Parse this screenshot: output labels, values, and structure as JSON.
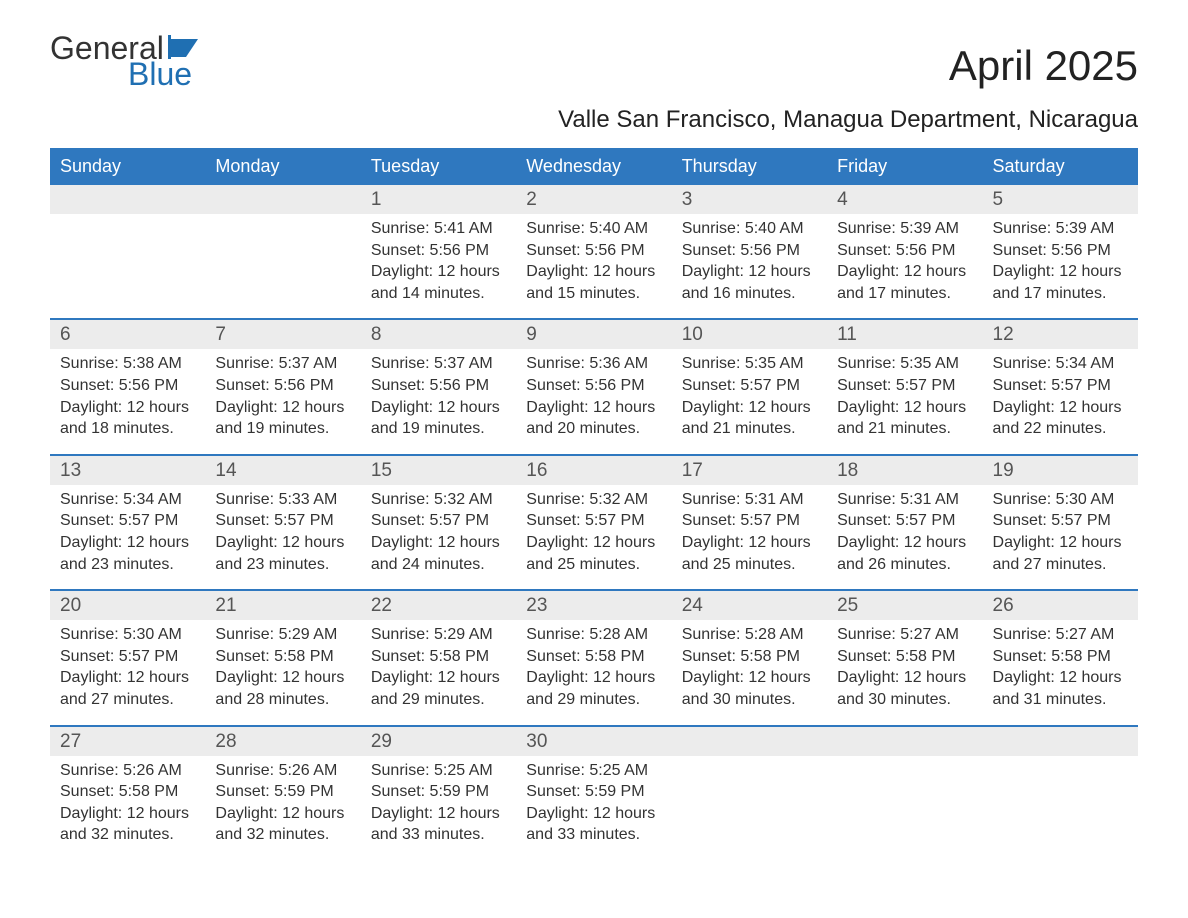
{
  "logo": {
    "line1": "General",
    "line2": "Blue",
    "icon_color": "#1f6fb2"
  },
  "title": "April 2025",
  "subtitle": "Valle San Francisco, Managua Department, Nicaragua",
  "colors": {
    "header_bg": "#2f78bf",
    "header_text": "#ffffff",
    "daynum_bg": "#ececec",
    "body_text": "#333333",
    "accent_rule": "#2f78bf"
  },
  "typography": {
    "title_fontsize": 42,
    "subtitle_fontsize": 24,
    "header_fontsize": 18,
    "daynum_fontsize": 19,
    "cell_fontsize": 16
  },
  "calendar": {
    "columns": [
      "Sunday",
      "Monday",
      "Tuesday",
      "Wednesday",
      "Thursday",
      "Friday",
      "Saturday"
    ],
    "weeks": [
      [
        {
          "day": "",
          "sunrise": "",
          "sunset": "",
          "daylight1": "",
          "daylight2": ""
        },
        {
          "day": "",
          "sunrise": "",
          "sunset": "",
          "daylight1": "",
          "daylight2": ""
        },
        {
          "day": "1",
          "sunrise": "Sunrise: 5:41 AM",
          "sunset": "Sunset: 5:56 PM",
          "daylight1": "Daylight: 12 hours",
          "daylight2": "and 14 minutes."
        },
        {
          "day": "2",
          "sunrise": "Sunrise: 5:40 AM",
          "sunset": "Sunset: 5:56 PM",
          "daylight1": "Daylight: 12 hours",
          "daylight2": "and 15 minutes."
        },
        {
          "day": "3",
          "sunrise": "Sunrise: 5:40 AM",
          "sunset": "Sunset: 5:56 PM",
          "daylight1": "Daylight: 12 hours",
          "daylight2": "and 16 minutes."
        },
        {
          "day": "4",
          "sunrise": "Sunrise: 5:39 AM",
          "sunset": "Sunset: 5:56 PM",
          "daylight1": "Daylight: 12 hours",
          "daylight2": "and 17 minutes."
        },
        {
          "day": "5",
          "sunrise": "Sunrise: 5:39 AM",
          "sunset": "Sunset: 5:56 PM",
          "daylight1": "Daylight: 12 hours",
          "daylight2": "and 17 minutes."
        }
      ],
      [
        {
          "day": "6",
          "sunrise": "Sunrise: 5:38 AM",
          "sunset": "Sunset: 5:56 PM",
          "daylight1": "Daylight: 12 hours",
          "daylight2": "and 18 minutes."
        },
        {
          "day": "7",
          "sunrise": "Sunrise: 5:37 AM",
          "sunset": "Sunset: 5:56 PM",
          "daylight1": "Daylight: 12 hours",
          "daylight2": "and 19 minutes."
        },
        {
          "day": "8",
          "sunrise": "Sunrise: 5:37 AM",
          "sunset": "Sunset: 5:56 PM",
          "daylight1": "Daylight: 12 hours",
          "daylight2": "and 19 minutes."
        },
        {
          "day": "9",
          "sunrise": "Sunrise: 5:36 AM",
          "sunset": "Sunset: 5:56 PM",
          "daylight1": "Daylight: 12 hours",
          "daylight2": "and 20 minutes."
        },
        {
          "day": "10",
          "sunrise": "Sunrise: 5:35 AM",
          "sunset": "Sunset: 5:57 PM",
          "daylight1": "Daylight: 12 hours",
          "daylight2": "and 21 minutes."
        },
        {
          "day": "11",
          "sunrise": "Sunrise: 5:35 AM",
          "sunset": "Sunset: 5:57 PM",
          "daylight1": "Daylight: 12 hours",
          "daylight2": "and 21 minutes."
        },
        {
          "day": "12",
          "sunrise": "Sunrise: 5:34 AM",
          "sunset": "Sunset: 5:57 PM",
          "daylight1": "Daylight: 12 hours",
          "daylight2": "and 22 minutes."
        }
      ],
      [
        {
          "day": "13",
          "sunrise": "Sunrise: 5:34 AM",
          "sunset": "Sunset: 5:57 PM",
          "daylight1": "Daylight: 12 hours",
          "daylight2": "and 23 minutes."
        },
        {
          "day": "14",
          "sunrise": "Sunrise: 5:33 AM",
          "sunset": "Sunset: 5:57 PM",
          "daylight1": "Daylight: 12 hours",
          "daylight2": "and 23 minutes."
        },
        {
          "day": "15",
          "sunrise": "Sunrise: 5:32 AM",
          "sunset": "Sunset: 5:57 PM",
          "daylight1": "Daylight: 12 hours",
          "daylight2": "and 24 minutes."
        },
        {
          "day": "16",
          "sunrise": "Sunrise: 5:32 AM",
          "sunset": "Sunset: 5:57 PM",
          "daylight1": "Daylight: 12 hours",
          "daylight2": "and 25 minutes."
        },
        {
          "day": "17",
          "sunrise": "Sunrise: 5:31 AM",
          "sunset": "Sunset: 5:57 PM",
          "daylight1": "Daylight: 12 hours",
          "daylight2": "and 25 minutes."
        },
        {
          "day": "18",
          "sunrise": "Sunrise: 5:31 AM",
          "sunset": "Sunset: 5:57 PM",
          "daylight1": "Daylight: 12 hours",
          "daylight2": "and 26 minutes."
        },
        {
          "day": "19",
          "sunrise": "Sunrise: 5:30 AM",
          "sunset": "Sunset: 5:57 PM",
          "daylight1": "Daylight: 12 hours",
          "daylight2": "and 27 minutes."
        }
      ],
      [
        {
          "day": "20",
          "sunrise": "Sunrise: 5:30 AM",
          "sunset": "Sunset: 5:57 PM",
          "daylight1": "Daylight: 12 hours",
          "daylight2": "and 27 minutes."
        },
        {
          "day": "21",
          "sunrise": "Sunrise: 5:29 AM",
          "sunset": "Sunset: 5:58 PM",
          "daylight1": "Daylight: 12 hours",
          "daylight2": "and 28 minutes."
        },
        {
          "day": "22",
          "sunrise": "Sunrise: 5:29 AM",
          "sunset": "Sunset: 5:58 PM",
          "daylight1": "Daylight: 12 hours",
          "daylight2": "and 29 minutes."
        },
        {
          "day": "23",
          "sunrise": "Sunrise: 5:28 AM",
          "sunset": "Sunset: 5:58 PM",
          "daylight1": "Daylight: 12 hours",
          "daylight2": "and 29 minutes."
        },
        {
          "day": "24",
          "sunrise": "Sunrise: 5:28 AM",
          "sunset": "Sunset: 5:58 PM",
          "daylight1": "Daylight: 12 hours",
          "daylight2": "and 30 minutes."
        },
        {
          "day": "25",
          "sunrise": "Sunrise: 5:27 AM",
          "sunset": "Sunset: 5:58 PM",
          "daylight1": "Daylight: 12 hours",
          "daylight2": "and 30 minutes."
        },
        {
          "day": "26",
          "sunrise": "Sunrise: 5:27 AM",
          "sunset": "Sunset: 5:58 PM",
          "daylight1": "Daylight: 12 hours",
          "daylight2": "and 31 minutes."
        }
      ],
      [
        {
          "day": "27",
          "sunrise": "Sunrise: 5:26 AM",
          "sunset": "Sunset: 5:58 PM",
          "daylight1": "Daylight: 12 hours",
          "daylight2": "and 32 minutes."
        },
        {
          "day": "28",
          "sunrise": "Sunrise: 5:26 AM",
          "sunset": "Sunset: 5:59 PM",
          "daylight1": "Daylight: 12 hours",
          "daylight2": "and 32 minutes."
        },
        {
          "day": "29",
          "sunrise": "Sunrise: 5:25 AM",
          "sunset": "Sunset: 5:59 PM",
          "daylight1": "Daylight: 12 hours",
          "daylight2": "and 33 minutes."
        },
        {
          "day": "30",
          "sunrise": "Sunrise: 5:25 AM",
          "sunset": "Sunset: 5:59 PM",
          "daylight1": "Daylight: 12 hours",
          "daylight2": "and 33 minutes."
        },
        {
          "day": "",
          "sunrise": "",
          "sunset": "",
          "daylight1": "",
          "daylight2": ""
        },
        {
          "day": "",
          "sunrise": "",
          "sunset": "",
          "daylight1": "",
          "daylight2": ""
        },
        {
          "day": "",
          "sunrise": "",
          "sunset": "",
          "daylight1": "",
          "daylight2": ""
        }
      ]
    ]
  }
}
